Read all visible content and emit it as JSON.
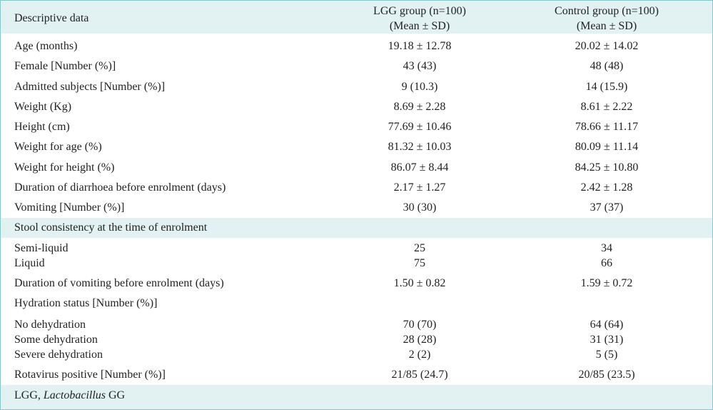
{
  "table": {
    "header": {
      "col0": "Descriptive data",
      "col1_line1": "LGG group (n=100)",
      "col1_line2": "(Mean ± SD)",
      "col2_line1": "Control group (n=100)",
      "col2_line2": "(Mean ± SD)"
    },
    "rows": [
      {
        "label": "Age (months)",
        "lgg": "19.18 ± 12.78",
        "control": "20.02 ± 14.02"
      },
      {
        "label": "Female [Number (%)]",
        "lgg": "43 (43)",
        "control": "48 (48)"
      },
      {
        "label": "Admitted subjects [Number (%)]",
        "lgg": "9 (10.3)",
        "control": "14 (15.9)"
      },
      {
        "label": "Weight (Kg)",
        "lgg": "8.69 ± 2.28",
        "control": "8.61 ± 2.22"
      },
      {
        "label": "Height (cm)",
        "lgg": "77.69 ± 10.46",
        "control": "78.66 ± 11.17"
      },
      {
        "label": "Weight for age (%)",
        "lgg": "81.32 ± 10.03",
        "control": "80.09 ± 11.14"
      },
      {
        "label": "Weight for height (%)",
        "lgg": "86.07 ± 8.44",
        "control": "84.25 ± 10.80"
      },
      {
        "label": "Duration of diarrhoea before enrolment (days)",
        "lgg": "2.17 ± 1.27",
        "control": "2.42 ± 1.28"
      },
      {
        "label": "Vomiting [Number (%)]",
        "lgg": "30 (30)",
        "control": "37 (37)"
      },
      {
        "label": "Stool consistency at the time of enrolment",
        "lgg": "",
        "control": ""
      },
      {
        "label": "Semi-liquid",
        "lgg": "25",
        "control": "34"
      },
      {
        "label": "Liquid",
        "lgg": "75",
        "control": "66"
      },
      {
        "label": "Duration of vomiting before enrolment (days)",
        "lgg": "1.50 ± 0.82",
        "control": "1.59 ± 0.72"
      },
      {
        "label": "Hydration status [Number (%)]",
        "lgg": "",
        "control": ""
      },
      {
        "label": "No dehydration",
        "lgg": "70 (70)",
        "control": "64 (64)"
      },
      {
        "label": "Some dehydration",
        "lgg": "28 (28)",
        "control": "31 (31)"
      },
      {
        "label": "Severe dehydration",
        "lgg": "2 (2)",
        "control": "5 (5)"
      },
      {
        "label": "Rotavirus positive [Number (%)]",
        "lgg": "21/85 (24.7)",
        "control": "20/85 (23.5)"
      }
    ],
    "footnote": {
      "prefix": "LGG, ",
      "italic": "Lactobacillus",
      "suffix": " GG"
    }
  },
  "colors": {
    "header_band": "#e2f2f3",
    "border": "#86c7c9"
  }
}
